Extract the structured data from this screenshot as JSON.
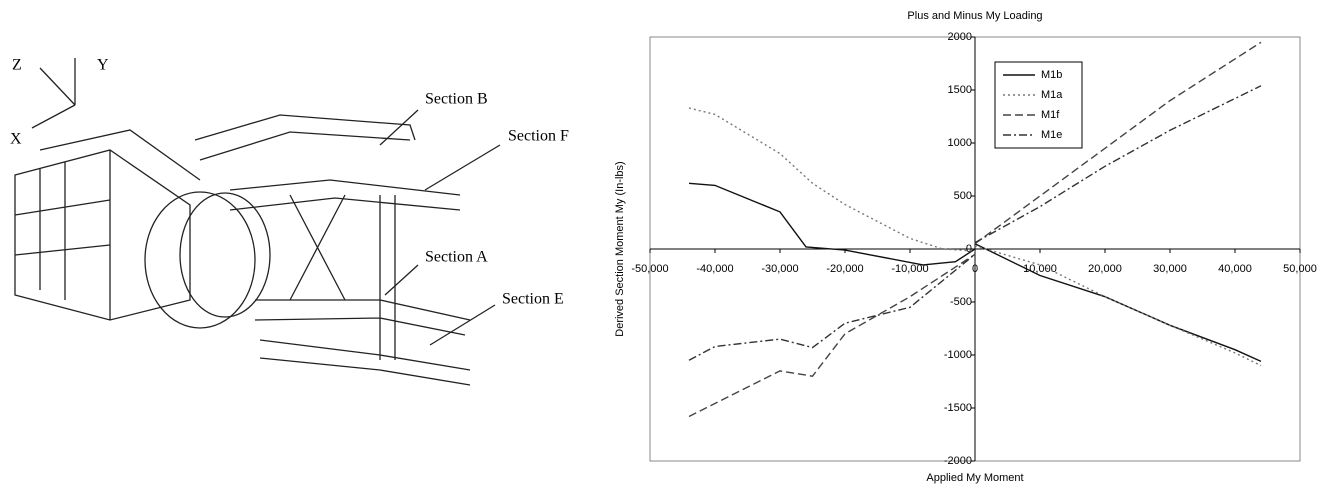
{
  "diagram": {
    "axes": [
      "Z",
      "Y",
      "X"
    ],
    "labels": [
      "Section B",
      "Section F",
      "Section A",
      "Section E"
    ]
  },
  "chart_data": {
    "type": "line",
    "title": "Plus and Minus My Loading",
    "x_label": "Applied My Moment",
    "y_label": "Derived Section Moment My (In-lbs)",
    "xlim": [
      -50000,
      50000
    ],
    "xticks": [
      {
        "value": -50000,
        "label": "-50,000"
      },
      {
        "value": -40000,
        "label": "-40,000"
      },
      {
        "value": -30000,
        "label": "-30,000"
      },
      {
        "value": -20000,
        "label": "-20,000"
      },
      {
        "value": -10000,
        "label": "-10,000"
      },
      {
        "value": 0,
        "label": "0"
      },
      {
        "value": 10000,
        "label": "10,000"
      },
      {
        "value": 20000,
        "label": "20,000"
      },
      {
        "value": 30000,
        "label": "30,000"
      },
      {
        "value": 40000,
        "label": "40,000"
      },
      {
        "value": 50000,
        "label": "50,000"
      }
    ],
    "ylim": [
      -2000,
      2000
    ],
    "yticks": [
      -2000,
      -1500,
      -1000,
      -500,
      0,
      500,
      1000,
      1500,
      2000
    ],
    "legend": "top-left",
    "series": [
      {
        "name": "M1b",
        "color": "#111111",
        "dash": "solid",
        "x": [
          -44000,
          -40000,
          -30000,
          -26000,
          -20000,
          -8000,
          -3000,
          0,
          null,
          0,
          10000,
          20000,
          30000,
          40000,
          44000
        ],
        "values": [
          620,
          600,
          350,
          20,
          -10,
          -150,
          -120,
          0,
          null,
          50,
          -250,
          -450,
          -720,
          -950,
          -1060
        ]
      },
      {
        "name": "M1a",
        "color": "#777777",
        "dash": "dotted",
        "x": [
          -44000,
          -40000,
          -30000,
          -25000,
          -20000,
          -10000,
          -5000,
          0,
          null,
          0,
          10000,
          20000,
          30000,
          40000,
          44000
        ],
        "values": [
          1330,
          1270,
          900,
          620,
          420,
          100,
          0,
          -20,
          null,
          30,
          -150,
          -450,
          -720,
          -980,
          -1100
        ]
      },
      {
        "name": "M1f",
        "color": "#444444",
        "dash": "dashed",
        "x": [
          -44000,
          -30000,
          -25000,
          -20000,
          -10000,
          0,
          null,
          0,
          10000,
          20000,
          30000,
          44000
        ],
        "values": [
          -1580,
          -1150,
          -1200,
          -800,
          -450,
          -50,
          null,
          50,
          500,
          950,
          1400,
          1950
        ]
      },
      {
        "name": "M1e",
        "color": "#333333",
        "dash": "dashdot",
        "x": [
          -44000,
          -40000,
          -30000,
          -25000,
          -20000,
          -10000,
          0,
          null,
          0,
          10000,
          20000,
          30000,
          44000
        ],
        "values": [
          -1050,
          -920,
          -850,
          -930,
          -700,
          -550,
          -50,
          null,
          60,
          400,
          780,
          1120,
          1540
        ]
      }
    ]
  }
}
